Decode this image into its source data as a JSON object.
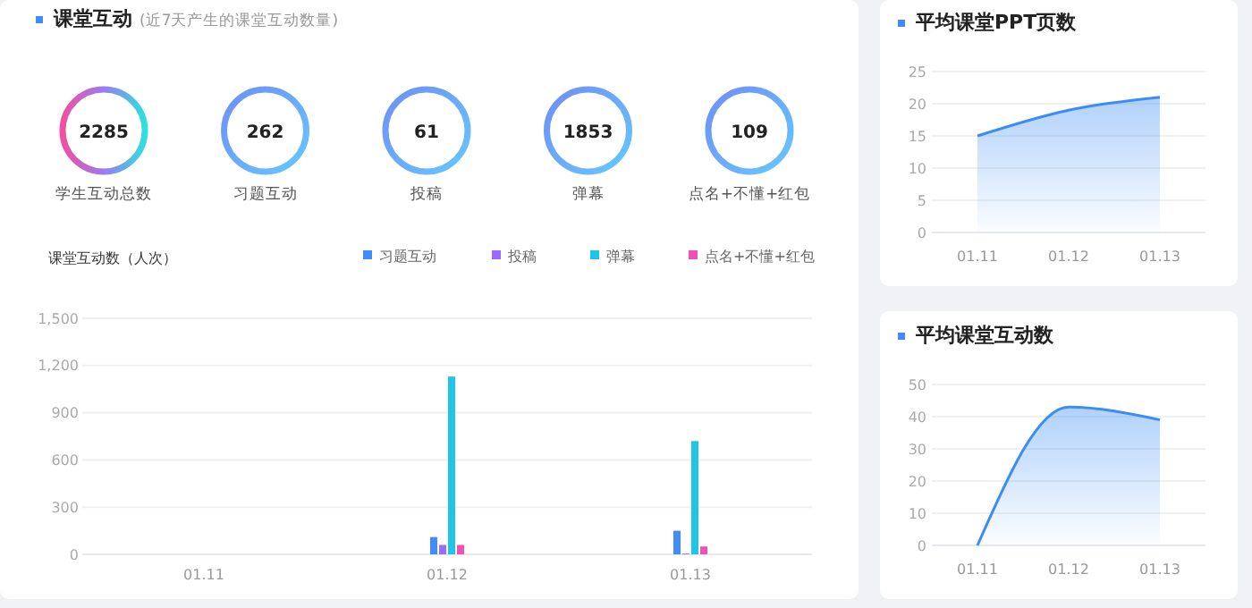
{
  "chart_data": [
    {
      "type": "other",
      "title": "课堂互动",
      "subtitle": "(近7天产生的课堂互动数量)",
      "categories": [
        "学生互动总数",
        "习题互动",
        "投稿",
        "弹幕",
        "点名+不懂+红包"
      ],
      "values": [
        2285,
        262,
        61,
        1853,
        109
      ],
      "data_labels": true
    },
    {
      "type": "bar",
      "ylabel": "课堂互动数（人次）",
      "categories": [
        "01.11",
        "01.12",
        "01.13"
      ],
      "series": [
        {
          "name": "习题互动",
          "color": "#3f8cff",
          "values": [
            0,
            110,
            150
          ]
        },
        {
          "name": "投稿",
          "color": "#9b6bff",
          "values": [
            0,
            60,
            5
          ]
        },
        {
          "name": "弹幕",
          "color": "#1fc4ea",
          "values": [
            0,
            1130,
            720
          ]
        },
        {
          "name": "点名+不懂+红包",
          "color": "#f050b8",
          "values": [
            0,
            60,
            50
          ]
        }
      ],
      "ylim": [
        0,
        1500
      ],
      "yticks": [
        {
          "value": 0,
          "label": "0"
        },
        {
          "value": 300,
          "label": "300"
        },
        {
          "value": 600,
          "label": "600"
        },
        {
          "value": 900,
          "label": "900"
        },
        {
          "value": 1200,
          "label": "1,200"
        },
        {
          "value": 1500,
          "label": "1,500"
        }
      ],
      "grid": "y",
      "legend": "top right"
    },
    {
      "type": "area",
      "title": "平均课堂PPT页数",
      "categories": [
        "01.11",
        "01.12",
        "01.13"
      ],
      "series": [
        {
          "color": "#3c8cf5",
          "values": [
            15,
            19,
            21
          ]
        }
      ],
      "ylim": [
        0,
        25
      ],
      "yticks": [
        0,
        5,
        10,
        15,
        20,
        25
      ],
      "grid": "y"
    },
    {
      "type": "area",
      "title": "平均课堂互动数",
      "categories": [
        "01.11",
        "01.12",
        "01.13"
      ],
      "series": [
        {
          "color": "#3c8cf5",
          "values": [
            0,
            43,
            39
          ]
        }
      ],
      "ylim": [
        0,
        50
      ],
      "yticks": [
        0,
        10,
        20,
        30,
        40,
        50
      ],
      "grid": "y"
    }
  ]
}
